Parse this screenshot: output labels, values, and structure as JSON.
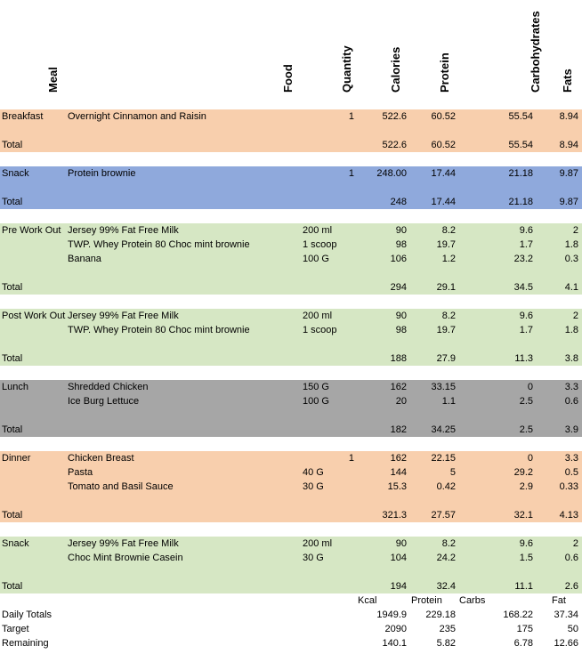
{
  "headers": {
    "meal": "Meal",
    "food": "Food",
    "quantity": "Quantity",
    "calories": "Calories",
    "protein": "Protein",
    "carbohydrates": "Carbohydrates",
    "fats": "Fats"
  },
  "sections": [
    {
      "color": "peach",
      "rows": [
        {
          "meal": "Breakfast",
          "food": "Overnight Cinnamon and Raisin",
          "qty_text": "",
          "qty_num": "1",
          "cal": "522.6",
          "pro": "60.52",
          "carb": "55.54",
          "fat": "8.94"
        }
      ],
      "total": {
        "label": "Total",
        "cal": "522.6",
        "pro": "60.52",
        "carb": "55.54",
        "fat": "8.94"
      }
    },
    {
      "color": "blue",
      "rows": [
        {
          "meal": "Snack",
          "food": "Protein brownie",
          "qty_text": "",
          "qty_num": "1",
          "cal": "248.00",
          "pro": "17.44",
          "carb": "21.18",
          "fat": "9.87"
        }
      ],
      "total": {
        "label": "Total",
        "cal": "248",
        "pro": "17.44",
        "carb": "21.18",
        "fat": "9.87"
      }
    },
    {
      "color": "green",
      "rows": [
        {
          "meal": "Pre Work Out",
          "food": "Jersey 99% Fat Free Milk",
          "qty_text": "200 ml",
          "qty_num": "",
          "cal": "90",
          "pro": "8.2",
          "carb": "9.6",
          "fat": "2"
        },
        {
          "meal": "",
          "food": "TWP. Whey Protein 80 Choc mint brownie",
          "qty_text": "1 scoop",
          "qty_num": "",
          "cal": "98",
          "pro": "19.7",
          "carb": "1.7",
          "fat": "1.8"
        },
        {
          "meal": "",
          "food": "Banana",
          "qty_text": "100 G",
          "qty_num": "",
          "cal": "106",
          "pro": "1.2",
          "carb": "23.2",
          "fat": "0.3"
        }
      ],
      "total": {
        "label": "Total",
        "cal": "294",
        "pro": "29.1",
        "carb": "34.5",
        "fat": "4.1"
      }
    },
    {
      "color": "green",
      "rows": [
        {
          "meal": "Post Work Out",
          "food": "Jersey 99% Fat Free Milk",
          "qty_text": "200 ml",
          "qty_num": "",
          "cal": "90",
          "pro": "8.2",
          "carb": "9.6",
          "fat": "2"
        },
        {
          "meal": "",
          "food": "TWP. Whey Protein 80 Choc mint brownie",
          "qty_text": "1 scoop",
          "qty_num": "",
          "cal": "98",
          "pro": "19.7",
          "carb": "1.7",
          "fat": "1.8"
        }
      ],
      "total": {
        "label": "Total",
        "cal": "188",
        "pro": "27.9",
        "carb": "11.3",
        "fat": "3.8"
      }
    },
    {
      "color": "gray",
      "rows": [
        {
          "meal": "Lunch",
          "food": "Shredded Chicken",
          "qty_text": "150 G",
          "qty_num": "",
          "cal": "162",
          "pro": "33.15",
          "carb": "0",
          "fat": "3.3"
        },
        {
          "meal": "",
          "food": "Ice Burg Lettuce",
          "qty_text": "100 G",
          "qty_num": "",
          "cal": "20",
          "pro": "1.1",
          "carb": "2.5",
          "fat": "0.6"
        }
      ],
      "total": {
        "label": "Total",
        "cal": "182",
        "pro": "34.25",
        "carb": "2.5",
        "fat": "3.9"
      }
    },
    {
      "color": "peach",
      "rows": [
        {
          "meal": "Dinner",
          "food": "Chicken Breast",
          "qty_text": "",
          "qty_num": "1",
          "cal": "162",
          "pro": "22.15",
          "carb": "0",
          "fat": "3.3"
        },
        {
          "meal": "",
          "food": "Pasta",
          "qty_text": "40 G",
          "qty_num": "",
          "cal": "144",
          "pro": "5",
          "carb": "29.2",
          "fat": "0.5"
        },
        {
          "meal": "",
          "food": "Tomato and Basil Sauce",
          "qty_text": "30 G",
          "qty_num": "",
          "cal": "15.3",
          "pro": "0.42",
          "carb": "2.9",
          "fat": "0.33"
        }
      ],
      "total": {
        "label": "Total",
        "cal": "321.3",
        "pro": "27.57",
        "carb": "32.1",
        "fat": "4.13"
      }
    },
    {
      "color": "green",
      "rows": [
        {
          "meal": "Snack",
          "food": "Jersey 99% Fat Free Milk",
          "qty_text": "200 ml",
          "qty_num": "",
          "cal": "90",
          "pro": "8.2",
          "carb": "9.6",
          "fat": "2"
        },
        {
          "meal": "",
          "food": "Choc Mint Brownie Casein",
          "qty_text": "30 G",
          "qty_num": "",
          "cal": "104",
          "pro": "24.2",
          "carb": "1.5",
          "fat": "0.6"
        }
      ],
      "total": {
        "label": "Total",
        "cal": "194",
        "pro": "32.4",
        "carb": "11.1",
        "fat": "2.6"
      }
    }
  ],
  "summary": {
    "labels": {
      "kcal": "Kcal",
      "protein": "Protein",
      "carbs": "Carbs",
      "fat": "Fat"
    },
    "rows": [
      {
        "label": "Daily Totals",
        "cal": "1949.9",
        "pro": "229.18",
        "carb": "168.22",
        "fat": "37.34"
      },
      {
        "label": "Target",
        "cal": "2090",
        "pro": "235",
        "carb": "175",
        "fat": "50"
      },
      {
        "label": "Remaining",
        "cal": "140.1",
        "pro": "5.82",
        "carb": "6.78",
        "fat": "12.66"
      }
    ]
  }
}
